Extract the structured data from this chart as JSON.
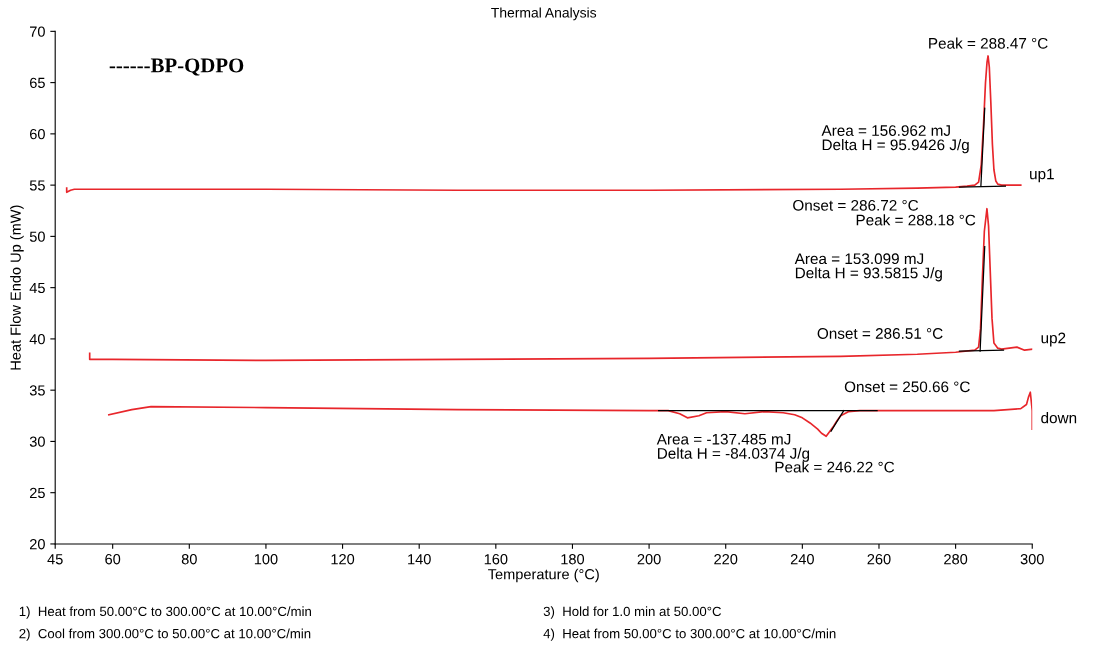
{
  "chart_data": {
    "type": "line",
    "title": "Thermal Analysis",
    "xlabel": "Temperature (°C)",
    "ylabel": "Heat Flow Endo Up (mW)",
    "xlim": [
      45,
      300
    ],
    "xticks": [
      45,
      60,
      80,
      100,
      120,
      140,
      160,
      180,
      200,
      220,
      240,
      260,
      280,
      300
    ],
    "ylim": [
      20,
      70
    ],
    "yticks": [
      20,
      25,
      30,
      35,
      40,
      45,
      50,
      55,
      60,
      65,
      70
    ],
    "grid": false,
    "legend": false,
    "marker": "none",
    "line_style": "solid",
    "series": [
      {
        "name": "up1",
        "color": "#e8262b",
        "x": [
          48,
          48,
          49,
          50,
          100,
          150,
          200,
          250,
          270,
          280,
          283,
          285,
          286,
          286.7,
          287.3,
          287.8,
          288.2,
          288.47,
          288.8,
          289.2,
          289.6,
          290,
          290.5,
          291,
          292,
          294,
          297
        ],
        "values": [
          54.7,
          54.3,
          54.5,
          54.6,
          54.6,
          54.5,
          54.5,
          54.6,
          54.7,
          54.8,
          54.9,
          55.0,
          55.3,
          57,
          61,
          65,
          67,
          67.6,
          66.5,
          63,
          59,
          56.5,
          55.4,
          55.1,
          55.0,
          55.0,
          55.0
        ]
      },
      {
        "name": "up2",
        "color": "#e8262b",
        "x": [
          54,
          54,
          54.5,
          60,
          100,
          150,
          200,
          250,
          270,
          280,
          285,
          286,
          286.5,
          287,
          287.5,
          288.18,
          288.6,
          289,
          289.5,
          290,
          291,
          292,
          294,
          296,
          298,
          300
        ],
        "values": [
          38.6,
          38.0,
          38.0,
          38.0,
          37.9,
          38.0,
          38.1,
          38.3,
          38.5,
          38.7,
          38.9,
          39.2,
          41,
          46,
          50.5,
          52.7,
          51,
          47,
          42,
          39.6,
          39.1,
          39.0,
          39.1,
          39.2,
          38.9,
          39.0
        ]
      },
      {
        "name": "down",
        "color": "#e8262b",
        "x": [
          59,
          65,
          70,
          100,
          150,
          200,
          205,
          208,
          210,
          213,
          215,
          220,
          225,
          230,
          235,
          238,
          240,
          242,
          244,
          245,
          246.22,
          247,
          248,
          249,
          250,
          252,
          255,
          270,
          290,
          297,
          298.5,
          299,
          299.5,
          300,
          300
        ],
        "values": [
          32.6,
          33.1,
          33.4,
          33.3,
          33.1,
          33.0,
          33.0,
          32.7,
          32.3,
          32.5,
          32.8,
          32.9,
          32.7,
          32.9,
          32.8,
          32.6,
          32.3,
          31.8,
          31.2,
          30.8,
          30.5,
          30.9,
          31.4,
          32.0,
          32.5,
          32.9,
          33.0,
          33.0,
          33.0,
          33.2,
          33.6,
          34.3,
          34.8,
          33,
          31.2
        ]
      },
      {
        "color": "#000000",
        "x": [
          281,
          293
        ],
        "values": [
          54.8,
          54.9
        ]
      },
      {
        "color": "#000000",
        "x": [
          286.6,
          287.6
        ],
        "values": [
          54.9,
          62.5
        ]
      },
      {
        "color": "#000000",
        "x": [
          281,
          292.5
        ],
        "values": [
          38.8,
          38.9
        ]
      },
      {
        "color": "#000000",
        "x": [
          286.4,
          287.6
        ],
        "values": [
          38.8,
          49
        ]
      },
      {
        "color": "#000000",
        "x": [
          202.5,
          259.5
        ],
        "values": [
          33.0,
          33.0
        ]
      },
      {
        "color": "#000000",
        "x": [
          247.5,
          250.8
        ],
        "values": [
          31.0,
          33.0
        ]
      }
    ],
    "annotations": [
      "------BP-QDPO",
      {
        "text": "Peak = 288.47 °C",
        "x": 288.47,
        "y": 67.6
      },
      "Area = 156.962 mJ\nDelta H = 95.9426 J/g",
      "Onset = 286.72 °C",
      {
        "text": "Peak = 288.18 °C",
        "x": 288.18,
        "y": 52.7
      },
      "Area = 153.099 mJ\nDelta H = 93.5815 J/g",
      "Onset = 286.51 °C",
      "Onset = 250.66 °C",
      "Area = -137.485 mJ\nDelta H = -84.0374 J/g",
      {
        "text": "Peak = 246.22 °C",
        "x": 246.22,
        "y": 30.5
      },
      "1)  Heat from 50.00°C to 300.00°C at 10.00°C/min",
      "2)  Cool from 300.00°C to 50.00°C at 10.00°C/min",
      "3)  Hold for 1.0 min at 50.00°C",
      "4)  Heat from 50.00°C to 300.00°C at 10.00°C/min"
    ]
  }
}
